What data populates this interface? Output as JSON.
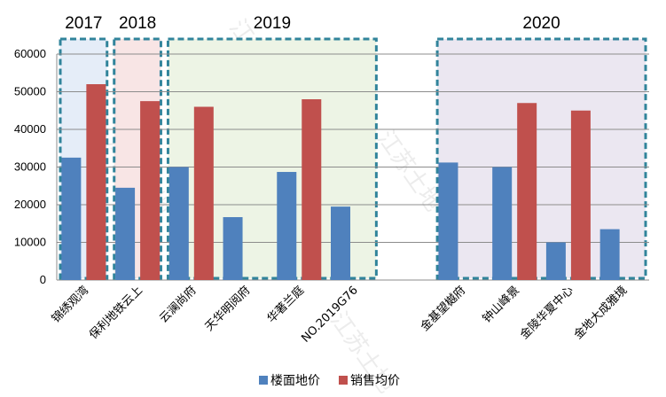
{
  "chart_data": {
    "type": "bar",
    "title": "",
    "xlabel": "",
    "ylabel": "",
    "ylim": [
      0,
      60000
    ],
    "yticks": [
      0,
      10000,
      20000,
      30000,
      40000,
      50000,
      60000
    ],
    "grid": true,
    "legend_position": "bottom",
    "categories": [
      "锦绣观湾",
      "保利地铁云上",
      "云澜尚府",
      "天华明阅府",
      "华著兰庭",
      "NO.2019G76",
      "",
      "金基望樾府",
      "钟山峰景",
      "金陵华夏中心",
      "金地大成雅境"
    ],
    "series": [
      {
        "name": "楼面地价",
        "color": "#4f81bd",
        "values": [
          32500,
          24500,
          30000,
          16700,
          28700,
          19500,
          null,
          31200,
          30000,
          10000,
          13500
        ]
      },
      {
        "name": "销售均价",
        "color": "#c0504d",
        "values": [
          52000,
          47500,
          46000,
          null,
          48000,
          null,
          null,
          null,
          47000,
          45000,
          null
        ]
      }
    ],
    "year_groups": [
      {
        "label": "2017",
        "start": 0,
        "end": 0,
        "fill": "#e5edf8"
      },
      {
        "label": "2018",
        "start": 1,
        "end": 1,
        "fill": "#f8e5e5"
      },
      {
        "label": "2019",
        "start": 2,
        "end": 5,
        "fill": "#edf4e5"
      },
      {
        "label": "2020",
        "start": 7,
        "end": 10,
        "fill": "#ebe7f1"
      }
    ],
    "group_border_color": "#31849b"
  },
  "watermark": "江苏土地"
}
